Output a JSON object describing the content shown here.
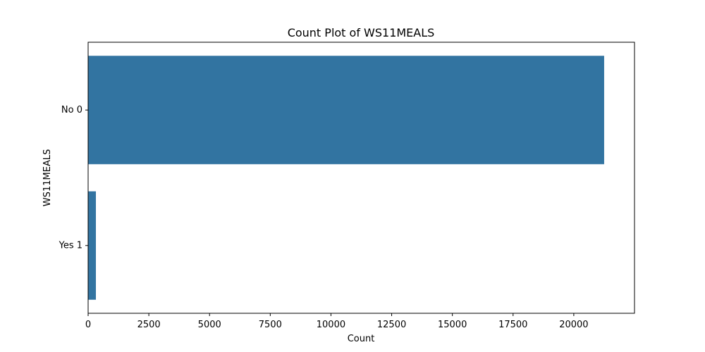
{
  "chart_data": {
    "type": "bar",
    "orientation": "horizontal",
    "title": "Count Plot of WS11MEALS",
    "xlabel": "Count",
    "ylabel": "WS11MEALS",
    "categories": [
      "No 0",
      "Yes 1"
    ],
    "values": [
      21250,
      320
    ],
    "xlim": [
      0,
      22500
    ],
    "xticks": [
      0,
      2500,
      5000,
      7500,
      10000,
      12500,
      15000,
      17500,
      20000
    ],
    "bar_color": "#3274a1",
    "grid": false,
    "legend": "none"
  }
}
